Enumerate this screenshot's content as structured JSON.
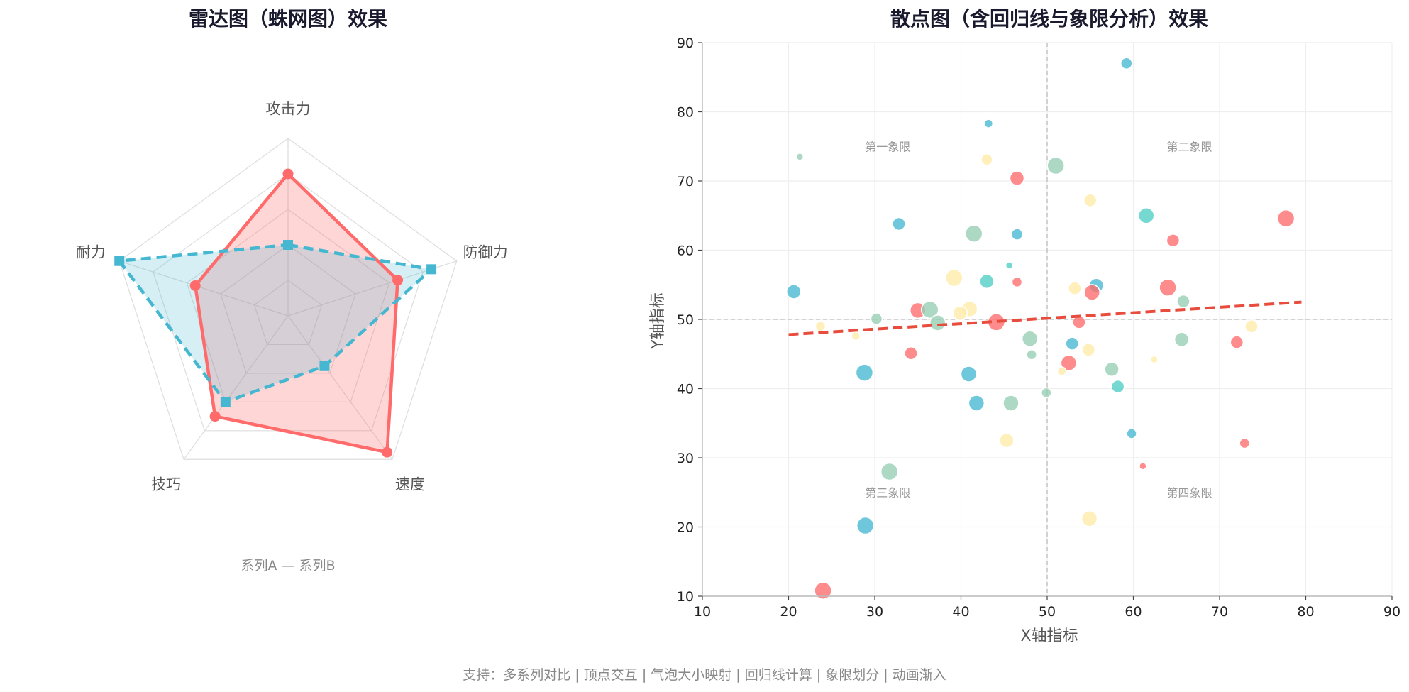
{
  "footer": "支持：多系列对比 | 顶点交互 | 气泡大小映射 | 回归线计算 | 象限划分 | 动画渐入",
  "chart_data": [
    {
      "type": "radar",
      "title": "雷达图（蛛网图）效果",
      "axes": [
        "攻击力",
        "防御力",
        "速度",
        "技巧",
        "耐力"
      ],
      "max": 100,
      "rings": 5,
      "legend_text": "系列A — 系列B",
      "legend_position": "bottom",
      "series": [
        {
          "values": [
            80,
            65,
            95,
            70,
            55
          ],
          "color": "#ff6b6b",
          "line": "solid",
          "marker": "circle"
        },
        {
          "values": [
            40,
            85,
            35,
            60,
            100
          ],
          "color": "#45b7d1",
          "line": "dashed",
          "marker": "square"
        }
      ]
    },
    {
      "type": "scatter",
      "title": "散点图（含回归线与象限分析）效果",
      "xlabel": "X轴指标",
      "ylabel": "Y轴指标",
      "xlim": [
        10,
        90
      ],
      "ylim": [
        10,
        90
      ],
      "xticks": [
        10,
        20,
        30,
        40,
        50,
        60,
        70,
        80,
        90
      ],
      "yticks": [
        10,
        20,
        30,
        40,
        50,
        60,
        70,
        80,
        90
      ],
      "grid": true,
      "quadrant_center": [
        50,
        50
      ],
      "quadrant_labels": [
        "第一象限",
        "第二象限",
        "第三象限",
        "第四象限"
      ],
      "regression": {
        "x": [
          20,
          79.5
        ],
        "y": [
          47.8,
          52.5
        ],
        "color": "#e74c3c"
      },
      "points": [
        {
          "x": 59.2,
          "y": 87,
          "s": 8,
          "c": "#45b7d1"
        },
        {
          "x": 43.2,
          "y": 78.3,
          "s": 6,
          "c": "#45b7d1"
        },
        {
          "x": 21.3,
          "y": 73.5,
          "s": 5,
          "c": "#96ceb4"
        },
        {
          "x": 43,
          "y": 73.1,
          "s": 8,
          "c": "#ffeaa7"
        },
        {
          "x": 46.5,
          "y": 70.4,
          "s": 10,
          "c": "#ff6b6b"
        },
        {
          "x": 51,
          "y": 72.2,
          "s": 12,
          "c": "#96ceb4"
        },
        {
          "x": 55,
          "y": 67.2,
          "s": 9,
          "c": "#ffeaa7"
        },
        {
          "x": 61.5,
          "y": 65,
          "s": 11,
          "c": "#4ecdc4"
        },
        {
          "x": 77.7,
          "y": 64.6,
          "s": 12,
          "c": "#ff6b6b"
        },
        {
          "x": 32.8,
          "y": 63.8,
          "s": 9,
          "c": "#45b7d1"
        },
        {
          "x": 41.5,
          "y": 62.4,
          "s": 12,
          "c": "#96ceb4"
        },
        {
          "x": 46.5,
          "y": 62.3,
          "s": 8,
          "c": "#45b7d1"
        },
        {
          "x": 64.6,
          "y": 61.4,
          "s": 9,
          "c": "#ff6b6b"
        },
        {
          "x": 45.6,
          "y": 57.8,
          "s": 5,
          "c": "#4ecdc4"
        },
        {
          "x": 39.2,
          "y": 56,
          "s": 12,
          "c": "#ffeaa7"
        },
        {
          "x": 43,
          "y": 55.5,
          "s": 10,
          "c": "#4ecdc4"
        },
        {
          "x": 46.5,
          "y": 55.4,
          "s": 7,
          "c": "#ff6b6b"
        },
        {
          "x": 53.2,
          "y": 54.5,
          "s": 9,
          "c": "#ffeaa7"
        },
        {
          "x": 55.7,
          "y": 54.9,
          "s": 10,
          "c": "#45b7d1"
        },
        {
          "x": 55.2,
          "y": 53.9,
          "s": 11,
          "c": "#ff6b6b"
        },
        {
          "x": 64,
          "y": 54.6,
          "s": 12,
          "c": "#ff6b6b"
        },
        {
          "x": 65.8,
          "y": 52.6,
          "s": 9,
          "c": "#96ceb4"
        },
        {
          "x": 20.6,
          "y": 54,
          "s": 10,
          "c": "#45b7d1"
        },
        {
          "x": 35,
          "y": 51.3,
          "s": 11,
          "c": "#ff6b6b"
        },
        {
          "x": 36.4,
          "y": 51.4,
          "s": 12,
          "c": "#96ceb4"
        },
        {
          "x": 37.3,
          "y": 49.5,
          "s": 11,
          "c": "#96ceb4"
        },
        {
          "x": 30.2,
          "y": 50.1,
          "s": 8,
          "c": "#96ceb4"
        },
        {
          "x": 41,
          "y": 51.5,
          "s": 11,
          "c": "#ffeaa7"
        },
        {
          "x": 39.9,
          "y": 50.9,
          "s": 10,
          "c": "#ffeaa7"
        },
        {
          "x": 44.1,
          "y": 49.6,
          "s": 12,
          "c": "#ff6b6b"
        },
        {
          "x": 53.7,
          "y": 49.6,
          "s": 9,
          "c": "#ff6b6b"
        },
        {
          "x": 23.7,
          "y": 49,
          "s": 7,
          "c": "#ffeaa7"
        },
        {
          "x": 27.8,
          "y": 47.6,
          "s": 6,
          "c": "#ffeaa7"
        },
        {
          "x": 48,
          "y": 47.2,
          "s": 11,
          "c": "#96ceb4"
        },
        {
          "x": 52.9,
          "y": 46.5,
          "s": 9,
          "c": "#45b7d1"
        },
        {
          "x": 54.8,
          "y": 45.6,
          "s": 9,
          "c": "#ffeaa7"
        },
        {
          "x": 65.6,
          "y": 47.1,
          "s": 10,
          "c": "#96ceb4"
        },
        {
          "x": 72,
          "y": 46.7,
          "s": 9,
          "c": "#ff6b6b"
        },
        {
          "x": 73.7,
          "y": 49,
          "s": 9,
          "c": "#ffeaa7"
        },
        {
          "x": 34.2,
          "y": 45.1,
          "s": 9,
          "c": "#ff6b6b"
        },
        {
          "x": 48.2,
          "y": 44.9,
          "s": 7,
          "c": "#96ceb4"
        },
        {
          "x": 52.5,
          "y": 43.7,
          "s": 11,
          "c": "#ff6b6b"
        },
        {
          "x": 51.7,
          "y": 42.5,
          "s": 6,
          "c": "#ffeaa7"
        },
        {
          "x": 57.5,
          "y": 42.8,
          "s": 10,
          "c": "#96ceb4"
        },
        {
          "x": 62.4,
          "y": 44.2,
          "s": 5,
          "c": "#ffeaa7"
        },
        {
          "x": 28.8,
          "y": 42.3,
          "s": 12,
          "c": "#45b7d1"
        },
        {
          "x": 40.9,
          "y": 42.1,
          "s": 11,
          "c": "#45b7d1"
        },
        {
          "x": 58.2,
          "y": 40.3,
          "s": 9,
          "c": "#4ecdc4"
        },
        {
          "x": 49.9,
          "y": 39.4,
          "s": 7,
          "c": "#96ceb4"
        },
        {
          "x": 41.8,
          "y": 37.9,
          "s": 11,
          "c": "#45b7d1"
        },
        {
          "x": 45.8,
          "y": 37.9,
          "s": 11,
          "c": "#96ceb4"
        },
        {
          "x": 59.8,
          "y": 33.5,
          "s": 7,
          "c": "#45b7d1"
        },
        {
          "x": 45.3,
          "y": 32.5,
          "s": 10,
          "c": "#ffeaa7"
        },
        {
          "x": 72.9,
          "y": 32.1,
          "s": 7,
          "c": "#ff6b6b"
        },
        {
          "x": 61.1,
          "y": 28.8,
          "s": 5,
          "c": "#ff6b6b"
        },
        {
          "x": 31.7,
          "y": 28,
          "s": 12,
          "c": "#96ceb4"
        },
        {
          "x": 28.9,
          "y": 20.2,
          "s": 12,
          "c": "#45b7d1"
        },
        {
          "x": 54.9,
          "y": 21.2,
          "s": 11,
          "c": "#ffeaa7"
        },
        {
          "x": 24,
          "y": 10.8,
          "s": 12,
          "c": "#ff6b6b"
        }
      ]
    }
  ]
}
